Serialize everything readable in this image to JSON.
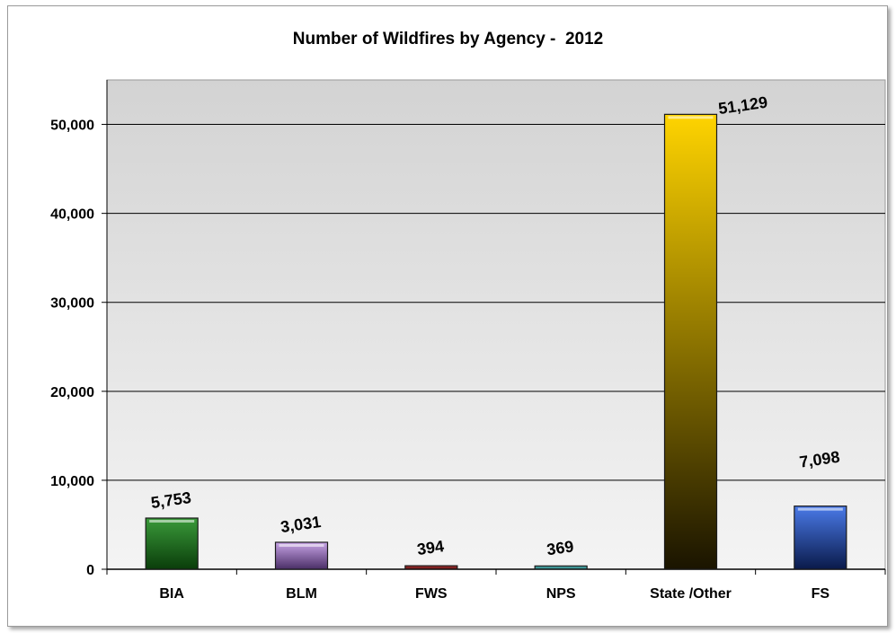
{
  "chart_data": {
    "type": "bar",
    "title": "Number of Wildfires by Agency -  2012",
    "xlabel": "",
    "ylabel": "",
    "categories": [
      "BIA",
      "BLM",
      "FWS",
      "NPS",
      "State /Other",
      "FS"
    ],
    "values": [
      5753,
      3031,
      394,
      369,
      51129,
      7098
    ],
    "value_labels": [
      "5,753",
      "3,031",
      "394",
      "369",
      "51,129",
      "7,098"
    ],
    "ylim": [
      0,
      55000
    ],
    "yticks": [
      0,
      10000,
      20000,
      30000,
      40000,
      50000
    ],
    "ytick_labels": [
      "0",
      "10,000",
      "20,000",
      "30,000",
      "40,000",
      "50,000"
    ],
    "grid": true,
    "legend": "none",
    "colors": {
      "BIA": [
        "#3a9a3a",
        "#0a3d0a"
      ],
      "BLM": [
        "#c7a3e6",
        "#4a2e66"
      ],
      "FWS": [
        "#b83a3a",
        "#4a0a0a"
      ],
      "NPS": [
        "#5fc8c8",
        "#1a5a5a"
      ],
      "State /Other": [
        "#ffd400",
        "#1a1400"
      ],
      "FS": [
        "#4a7ae8",
        "#0a1a4a"
      ]
    },
    "plot_background": [
      "#d3d3d3",
      "#f4f4f4"
    ]
  }
}
